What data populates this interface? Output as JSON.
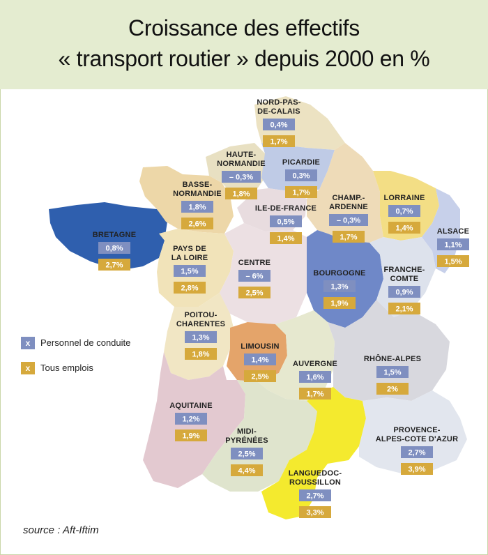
{
  "title_line1": "Croissance des effectifs",
  "title_line2": "« transport routier » depuis 2000 en %",
  "source": "source : Aft-Iftim",
  "colors": {
    "conduite": "#7f8fc0",
    "tous": "#d6a93c",
    "header_bg": "#e4ecd0"
  },
  "legend": [
    {
      "marker": "x",
      "label": "Personnel de conduite",
      "color": "#7f8fc0"
    },
    {
      "marker": "x",
      "label": "Tous emplois",
      "color": "#d6a93c"
    }
  ],
  "regions": [
    {
      "id": "nord",
      "name": [
        "NORD-PAS-",
        "DE-CALAIS"
      ],
      "conduite": "0,4%",
      "tous": "1,7%"
    },
    {
      "id": "picardie",
      "name": [
        "PICARDIE"
      ],
      "conduite": "0,3%",
      "tous": "1,7%"
    },
    {
      "id": "haute-normandie",
      "name": [
        "HAUTE-",
        "NORMANDIE"
      ],
      "conduite": "– 0,3%",
      "tous": "1,8%"
    },
    {
      "id": "basse-normandie",
      "name": [
        "BASSE-",
        "NORMANDIE"
      ],
      "conduite": "1,8%",
      "tous": "2,6%"
    },
    {
      "id": "idf",
      "name": [
        "ILE-DE-FRANCE"
      ],
      "conduite": "0,5%",
      "tous": "1,4%"
    },
    {
      "id": "champagne",
      "name": [
        "CHAMP.-",
        "ARDENNE"
      ],
      "conduite": "– 0,3%",
      "tous": "1,7%"
    },
    {
      "id": "lorraine",
      "name": [
        "LORRAINE"
      ],
      "conduite": "0,7%",
      "tous": "1,4%"
    },
    {
      "id": "alsace",
      "name": [
        "ALSACE"
      ],
      "conduite": "1,1%",
      "tous": "1,5%"
    },
    {
      "id": "bretagne",
      "name": [
        "BRETAGNE"
      ],
      "conduite": "0,8%",
      "tous": "2,7%"
    },
    {
      "id": "pays-de-la-loire",
      "name": [
        "PAYS DE",
        "LA LOIRE"
      ],
      "conduite": "1,5%",
      "tous": "2,8%"
    },
    {
      "id": "centre",
      "name": [
        "CENTRE"
      ],
      "conduite": "– 6%",
      "tous": "2,5%"
    },
    {
      "id": "bourgogne",
      "name": [
        "BOURGOGNE"
      ],
      "conduite": "1,3%",
      "tous": "1,9%"
    },
    {
      "id": "franche-comte",
      "name": [
        "FRANCHE-",
        "COMTE"
      ],
      "conduite": "0,9%",
      "tous": "2,1%"
    },
    {
      "id": "poitou",
      "name": [
        "POITOU-",
        "CHARENTES"
      ],
      "conduite": "1,3%",
      "tous": "1,8%"
    },
    {
      "id": "limousin",
      "name": [
        "LIMOUSIN"
      ],
      "conduite": "1,4%",
      "tous": "2,5%"
    },
    {
      "id": "auvergne",
      "name": [
        "AUVERGNE"
      ],
      "conduite": "1,6%",
      "tous": "1,7%"
    },
    {
      "id": "rhone-alpes",
      "name": [
        "RHÔNE-ALPES"
      ],
      "conduite": "1,5%",
      "tous": "2%"
    },
    {
      "id": "aquitaine",
      "name": [
        "AQUITAINE"
      ],
      "conduite": "1,2%",
      "tous": "1,9%"
    },
    {
      "id": "midi-pyrenees",
      "name": [
        "MIDI-",
        "PYRÉNÉES"
      ],
      "conduite": "2,5%",
      "tous": "4,4%"
    },
    {
      "id": "paca",
      "name": [
        "PROVENCE-",
        "ALPES-COTE D'AZUR"
      ],
      "conduite": "2,7%",
      "tous": "3,9%"
    },
    {
      "id": "languedoc",
      "name": [
        "LANGUEDOC-",
        "ROUSSILLON"
      ],
      "conduite": "2,7%",
      "tous": "3,3%"
    }
  ]
}
